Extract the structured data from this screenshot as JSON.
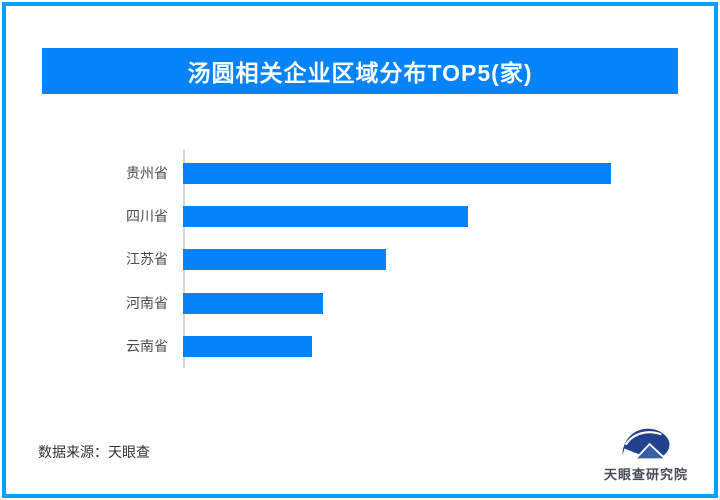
{
  "page": {
    "background_color": "#ffffff",
    "border_color": "#02a1ff"
  },
  "header": {
    "title": "汤圆相关企业区域分布TOP5(家)",
    "banner_color": "#0583fa",
    "title_color": "#ffffff"
  },
  "chart_data": {
    "type": "bar",
    "orientation": "horizontal",
    "title": "汤圆相关企业区域分布TOP5(家)",
    "categories": [
      "贵州省",
      "四川省",
      "江苏省",
      "河南省",
      "云南省"
    ],
    "values_pct_of_max": [
      100,
      66.6,
      47.4,
      32.7,
      30.1
    ],
    "value_labels_shown": false,
    "gridlines": false,
    "legend": "none",
    "xlabel": "",
    "ylabel": "",
    "bar_color": "#0583fa",
    "axis_line_color": "#d6d6d6",
    "category_label_color": "#4d4d4d"
  },
  "footer": {
    "source_text": "数据来源：天眼查",
    "logo_text": "天眼查研究院",
    "logo_color_primary": "#22418e",
    "logo_color_secondary": "#3a5fa5"
  }
}
